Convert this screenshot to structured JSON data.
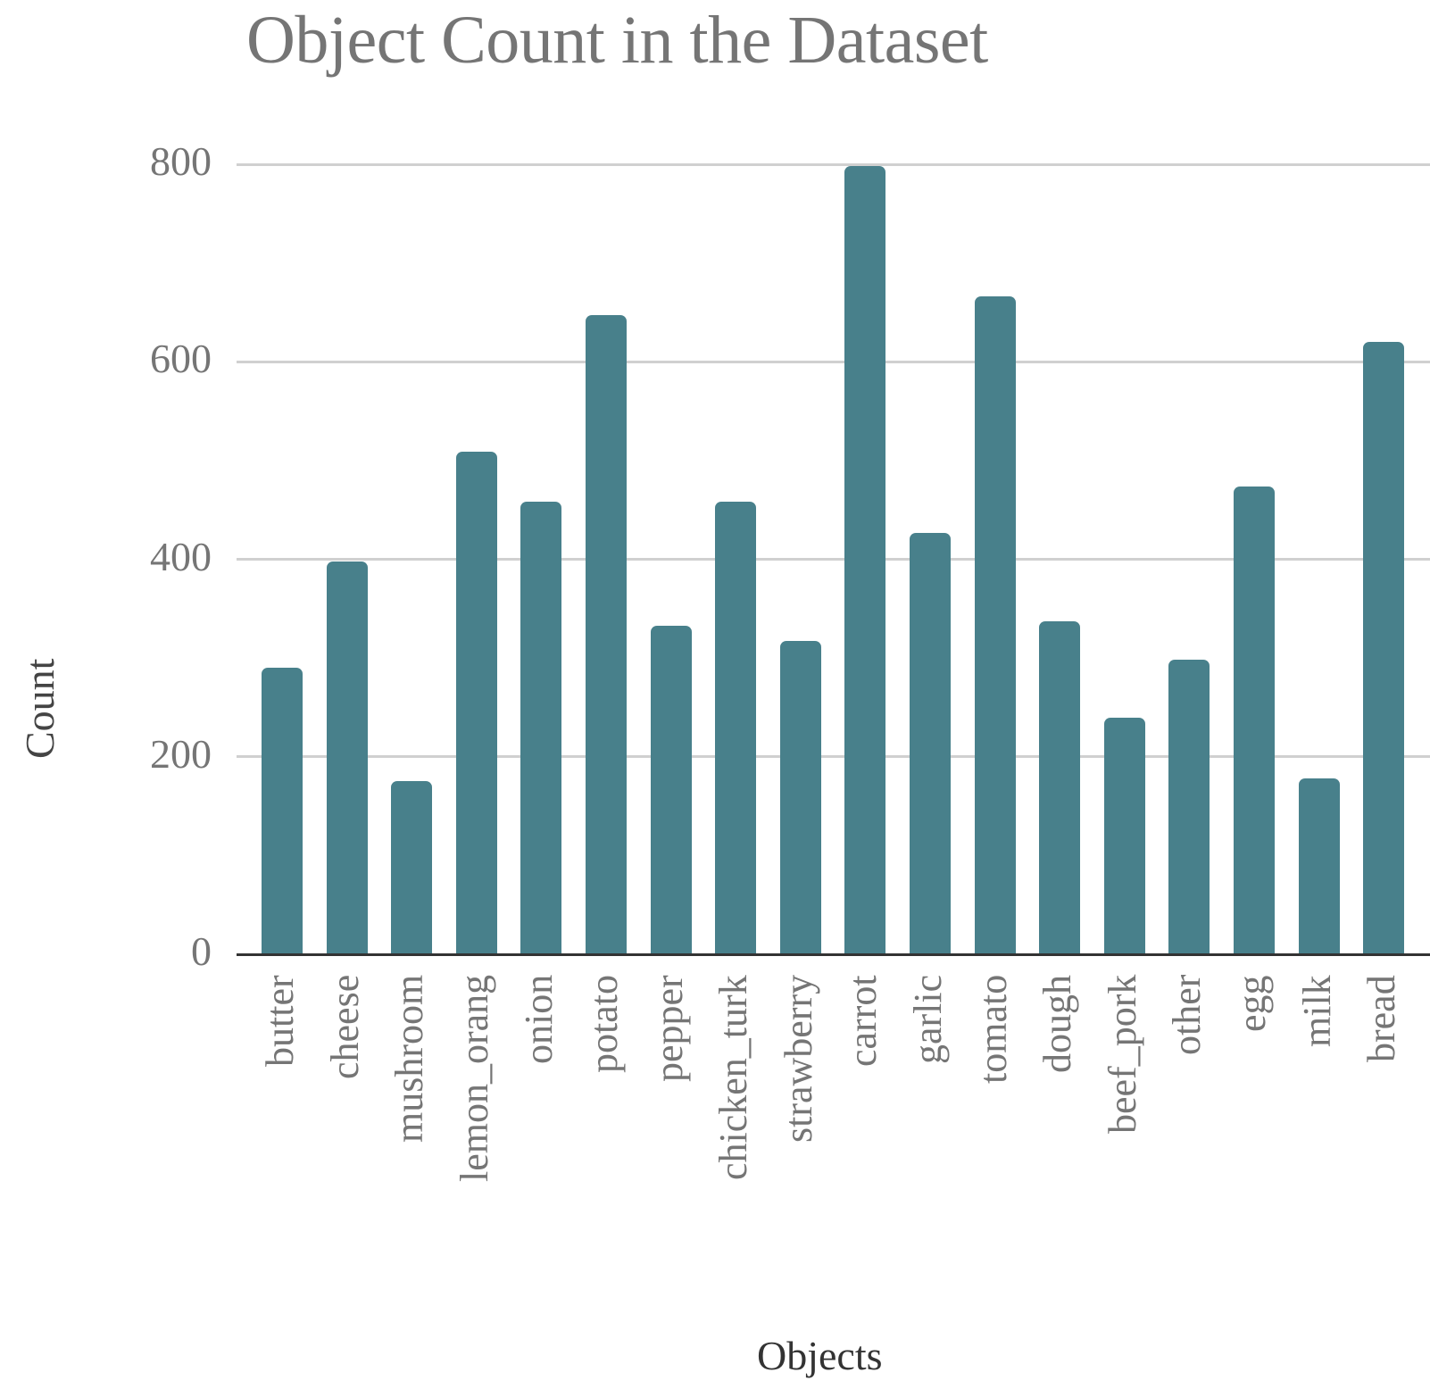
{
  "chart_data": {
    "type": "bar",
    "title": "Object Count in the Dataset",
    "xlabel": "Objects",
    "ylabel": "Count",
    "ylim": [
      0,
      800
    ],
    "yticks": [
      0,
      200,
      400,
      600,
      800
    ],
    "grid": true,
    "legend": null,
    "bar_color": "#48808b",
    "categories": [
      "butter",
      "cheese",
      "mushroom",
      "lemon_orang",
      "onion",
      "potato",
      "pepper",
      "chicken_turk",
      "strawberry",
      "carrot",
      "garlic",
      "tomato",
      "dough",
      "beef_pork",
      "other",
      "egg",
      "milk",
      "bread"
    ],
    "values": [
      290,
      398,
      175,
      509,
      458,
      647,
      333,
      458,
      317,
      798,
      427,
      666,
      337,
      240,
      298,
      474,
      178,
      620
    ]
  },
  "colors": {
    "bar": "#48808b",
    "grid": "#d0d0d0",
    "axis": "#333333",
    "title": "#757575",
    "tick_label": "#757575",
    "axis_title": "#444444"
  }
}
